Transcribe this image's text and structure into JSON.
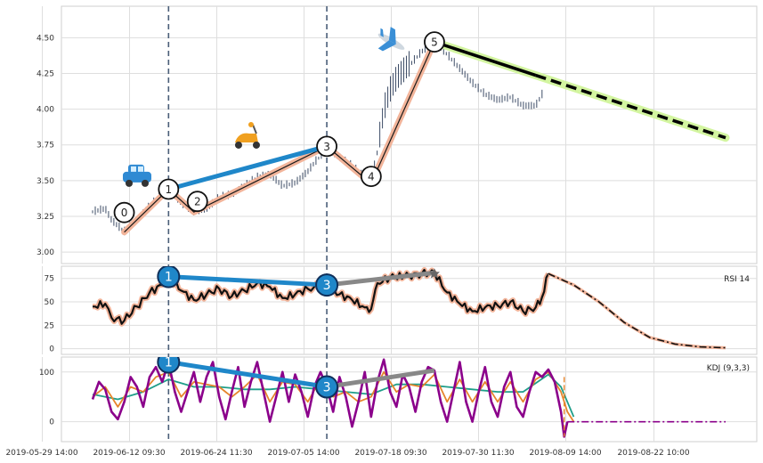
{
  "chart_data": {
    "type": "line",
    "title": "",
    "x_ticks": [
      "2019-05-29 14:00",
      "2019-06-12 09:30",
      "2019-06-24 11:30",
      "2019-07-05 14:00",
      "2019-07-18 09:30",
      "2019-07-30 11:30",
      "2019-08-09 14:00",
      "2019-08-22 10:00"
    ],
    "grid": true,
    "panels": [
      {
        "name": "price",
        "type": "candlestick",
        "ylim": [
          2.92,
          4.72
        ],
        "yticks": [
          "3.00",
          "3.25",
          "3.50",
          "3.75",
          "4.00",
          "4.25",
          "4.50"
        ],
        "wave_points": [
          {
            "label": "0",
            "x": 0.05,
            "y": 3.14
          },
          {
            "label": "1",
            "x": 0.12,
            "y": 3.44
          },
          {
            "label": "2",
            "x": 0.16,
            "y": 3.28
          },
          {
            "label": "3",
            "x": 0.37,
            "y": 3.74
          },
          {
            "label": "4",
            "x": 0.44,
            "y": 3.48
          },
          {
            "label": "5",
            "x": 0.54,
            "y": 4.47
          }
        ],
        "projection_end": {
          "x": 1.0,
          "y": 3.8
        },
        "emoji_markers": [
          {
            "name": "car",
            "x": 0.09,
            "y": 3.5
          },
          {
            "name": "scooter",
            "x": 0.27,
            "y": 3.73
          },
          {
            "name": "airplane",
            "x": 0.5,
            "y": 4.46
          }
        ],
        "close_path": [
          [
            0.0,
            3.28
          ],
          [
            0.02,
            3.3
          ],
          [
            0.03,
            3.22
          ],
          [
            0.05,
            3.14
          ],
          [
            0.07,
            3.22
          ],
          [
            0.09,
            3.32
          ],
          [
            0.11,
            3.4
          ],
          [
            0.12,
            3.44
          ],
          [
            0.14,
            3.34
          ],
          [
            0.16,
            3.28
          ],
          [
            0.18,
            3.3
          ],
          [
            0.2,
            3.38
          ],
          [
            0.22,
            3.4
          ],
          [
            0.24,
            3.46
          ],
          [
            0.26,
            3.52
          ],
          [
            0.28,
            3.54
          ],
          [
            0.3,
            3.46
          ],
          [
            0.32,
            3.48
          ],
          [
            0.34,
            3.56
          ],
          [
            0.35,
            3.62
          ],
          [
            0.37,
            3.72
          ],
          [
            0.39,
            3.66
          ],
          [
            0.41,
            3.6
          ],
          [
            0.43,
            3.52
          ],
          [
            0.44,
            3.5
          ],
          [
            0.45,
            3.7
          ],
          [
            0.46,
            3.98
          ],
          [
            0.47,
            4.12
          ],
          [
            0.48,
            4.2
          ],
          [
            0.5,
            4.3
          ],
          [
            0.52,
            4.4
          ],
          [
            0.54,
            4.47
          ],
          [
            0.56,
            4.38
          ],
          [
            0.58,
            4.28
          ],
          [
            0.6,
            4.18
          ],
          [
            0.62,
            4.1
          ],
          [
            0.64,
            4.06
          ],
          [
            0.66,
            4.08
          ],
          [
            0.68,
            4.02
          ],
          [
            0.7,
            4.02
          ],
          [
            0.71,
            4.1
          ]
        ]
      },
      {
        "name": "rsi",
        "type": "line",
        "label": "RSI 14",
        "ylim": [
          -6,
          88
        ],
        "yticks": [
          "0",
          "25",
          "50",
          "75"
        ],
        "markers": [
          {
            "label": "1",
            "x": 0.12,
            "y": 77
          },
          {
            "label": "3",
            "x": 0.37,
            "y": 68
          }
        ],
        "divergence_end": {
          "x": 0.54,
          "y": 81
        },
        "values": [
          [
            0.0,
            45
          ],
          [
            0.02,
            48
          ],
          [
            0.03,
            33
          ],
          [
            0.05,
            30
          ],
          [
            0.07,
            45
          ],
          [
            0.09,
            60
          ],
          [
            0.11,
            68
          ],
          [
            0.12,
            77
          ],
          [
            0.14,
            62
          ],
          [
            0.16,
            52
          ],
          [
            0.18,
            58
          ],
          [
            0.2,
            64
          ],
          [
            0.22,
            56
          ],
          [
            0.24,
            62
          ],
          [
            0.26,
            70
          ],
          [
            0.28,
            66
          ],
          [
            0.3,
            54
          ],
          [
            0.32,
            58
          ],
          [
            0.34,
            64
          ],
          [
            0.35,
            66
          ],
          [
            0.37,
            68
          ],
          [
            0.39,
            58
          ],
          [
            0.41,
            52
          ],
          [
            0.43,
            44
          ],
          [
            0.44,
            42
          ],
          [
            0.45,
            70
          ],
          [
            0.47,
            76
          ],
          [
            0.5,
            78
          ],
          [
            0.52,
            80
          ],
          [
            0.54,
            81
          ],
          [
            0.56,
            60
          ],
          [
            0.58,
            48
          ],
          [
            0.6,
            40
          ],
          [
            0.62,
            44
          ],
          [
            0.64,
            46
          ],
          [
            0.66,
            50
          ],
          [
            0.68,
            40
          ],
          [
            0.7,
            44
          ],
          [
            0.71,
            55
          ],
          [
            0.72,
            80
          ]
        ],
        "forecast": [
          [
            0.72,
            80
          ],
          [
            0.76,
            68
          ],
          [
            0.8,
            50
          ],
          [
            0.84,
            28
          ],
          [
            0.88,
            12
          ],
          [
            0.92,
            5
          ],
          [
            0.96,
            2
          ],
          [
            1.0,
            1
          ]
        ]
      },
      {
        "name": "kdj",
        "type": "line",
        "label": "KDJ (9,3,3)",
        "ylim": [
          -40,
          130
        ],
        "yticks": [
          "0",
          "100"
        ],
        "markers": [
          {
            "label": "1",
            "x": 0.12,
            "y": 120
          },
          {
            "label": "3",
            "x": 0.37,
            "y": 70
          }
        ],
        "divergence_end": {
          "x": 0.54,
          "y": 103
        },
        "series": [
          {
            "line": "J",
            "color": "#8b008b",
            "values": [
              [
                0.0,
                45
              ],
              [
                0.01,
                80
              ],
              [
                0.02,
                65
              ],
              [
                0.03,
                20
              ],
              [
                0.04,
                5
              ],
              [
                0.05,
                40
              ],
              [
                0.06,
                90
              ],
              [
                0.07,
                70
              ],
              [
                0.08,
                30
              ],
              [
                0.09,
                90
              ],
              [
                0.1,
                110
              ],
              [
                0.11,
                80
              ],
              [
                0.12,
                120
              ],
              [
                0.13,
                60
              ],
              [
                0.14,
                20
              ],
              [
                0.15,
                60
              ],
              [
                0.16,
                100
              ],
              [
                0.17,
                40
              ],
              [
                0.18,
                90
              ],
              [
                0.19,
                120
              ],
              [
                0.2,
                50
              ],
              [
                0.21,
                5
              ],
              [
                0.22,
                60
              ],
              [
                0.23,
                110
              ],
              [
                0.24,
                30
              ],
              [
                0.25,
                80
              ],
              [
                0.26,
                120
              ],
              [
                0.27,
                60
              ],
              [
                0.28,
                0
              ],
              [
                0.29,
                50
              ],
              [
                0.3,
                100
              ],
              [
                0.31,
                40
              ],
              [
                0.32,
                95
              ],
              [
                0.33,
                60
              ],
              [
                0.34,
                10
              ],
              [
                0.35,
                70
              ],
              [
                0.36,
                100
              ],
              [
                0.37,
                70
              ],
              [
                0.38,
                20
              ],
              [
                0.39,
                90
              ],
              [
                0.4,
                50
              ],
              [
                0.41,
                -10
              ],
              [
                0.42,
                40
              ],
              [
                0.43,
                100
              ],
              [
                0.44,
                10
              ],
              [
                0.45,
                80
              ],
              [
                0.46,
                125
              ],
              [
                0.47,
                60
              ],
              [
                0.48,
                30
              ],
              [
                0.49,
                95
              ],
              [
                0.5,
                70
              ],
              [
                0.51,
                20
              ],
              [
                0.52,
                80
              ],
              [
                0.53,
                110
              ],
              [
                0.54,
                103
              ],
              [
                0.55,
                40
              ],
              [
                0.56,
                0
              ],
              [
                0.57,
                60
              ],
              [
                0.58,
                120
              ],
              [
                0.59,
                40
              ],
              [
                0.6,
                0
              ],
              [
                0.61,
                60
              ],
              [
                0.62,
                110
              ],
              [
                0.63,
                40
              ],
              [
                0.64,
                10
              ],
              [
                0.65,
                70
              ],
              [
                0.66,
                100
              ],
              [
                0.67,
                30
              ],
              [
                0.68,
                10
              ],
              [
                0.69,
                60
              ],
              [
                0.7,
                100
              ],
              [
                0.71,
                90
              ],
              [
                0.72,
                105
              ],
              [
                0.73,
                80
              ],
              [
                0.74,
                20
              ],
              [
                0.745,
                -30
              ],
              [
                0.75,
                0
              ]
            ]
          },
          {
            "line": "K",
            "color": "#e6852c",
            "values": [
              [
                0.0,
                50
              ],
              [
                0.02,
                70
              ],
              [
                0.04,
                30
              ],
              [
                0.06,
                70
              ],
              [
                0.08,
                60
              ],
              [
                0.1,
                90
              ],
              [
                0.12,
                100
              ],
              [
                0.14,
                50
              ],
              [
                0.16,
                80
              ],
              [
                0.18,
                75
              ],
              [
                0.2,
                70
              ],
              [
                0.22,
                50
              ],
              [
                0.24,
                70
              ],
              [
                0.26,
                95
              ],
              [
                0.28,
                40
              ],
              [
                0.3,
                80
              ],
              [
                0.32,
                75
              ],
              [
                0.34,
                40
              ],
              [
                0.36,
                85
              ],
              [
                0.38,
                50
              ],
              [
                0.4,
                60
              ],
              [
                0.42,
                40
              ],
              [
                0.44,
                50
              ],
              [
                0.46,
                100
              ],
              [
                0.48,
                60
              ],
              [
                0.5,
                75
              ],
              [
                0.52,
                70
              ],
              [
                0.54,
                95
              ],
              [
                0.56,
                40
              ],
              [
                0.58,
                85
              ],
              [
                0.6,
                40
              ],
              [
                0.62,
                80
              ],
              [
                0.64,
                40
              ],
              [
                0.66,
                80
              ],
              [
                0.68,
                40
              ],
              [
                0.7,
                85
              ],
              [
                0.72,
                100
              ],
              [
                0.74,
                60
              ],
              [
                0.75,
                20
              ],
              [
                0.76,
                0
              ]
            ]
          },
          {
            "line": "D",
            "color": "#1f9e89",
            "values": [
              [
                0.0,
                55
              ],
              [
                0.04,
                45
              ],
              [
                0.08,
                60
              ],
              [
                0.12,
                85
              ],
              [
                0.16,
                70
              ],
              [
                0.2,
                70
              ],
              [
                0.24,
                65
              ],
              [
                0.28,
                65
              ],
              [
                0.32,
                70
              ],
              [
                0.36,
                65
              ],
              [
                0.4,
                60
              ],
              [
                0.44,
                55
              ],
              [
                0.48,
                75
              ],
              [
                0.52,
                75
              ],
              [
                0.56,
                70
              ],
              [
                0.6,
                65
              ],
              [
                0.64,
                60
              ],
              [
                0.68,
                60
              ],
              [
                0.72,
                95
              ],
              [
                0.74,
                70
              ],
              [
                0.76,
                10
              ]
            ]
          }
        ],
        "flat_forecast": {
          "y": 0
        }
      }
    ]
  }
}
